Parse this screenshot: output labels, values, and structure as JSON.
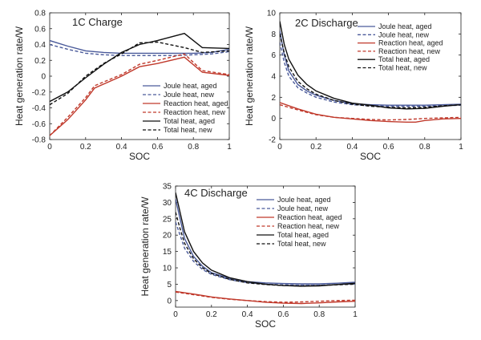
{
  "chart_data": [
    {
      "type": "line",
      "title": "1C Charge",
      "xlabel": "SOC",
      "ylabel": "Heat generation rate/W",
      "xlim": [
        0,
        1
      ],
      "ylim": [
        -0.8,
        0.8
      ],
      "xticks": [
        "0",
        "0.2",
        "0.4",
        "0.6",
        "0.8",
        "1"
      ],
      "yticks": [
        "-0.8",
        "-0.6",
        "-0.4",
        "-0.2",
        "0",
        "0.2",
        "0.4",
        "0.6",
        "0.8"
      ],
      "legend_position": "lower-right",
      "series": [
        {
          "name": "Joule heat, aged",
          "color": "#4a5a9a",
          "dash": "solid",
          "x": [
            0,
            0.1,
            0.2,
            0.3,
            0.4,
            0.5,
            0.6,
            0.7,
            0.8,
            0.9,
            1.0
          ],
          "y": [
            0.45,
            0.38,
            0.32,
            0.3,
            0.29,
            0.29,
            0.29,
            0.29,
            0.29,
            0.3,
            0.34
          ]
        },
        {
          "name": "Joule heat, new",
          "color": "#4a5a9a",
          "dash": "dashed",
          "x": [
            0,
            0.1,
            0.2,
            0.3,
            0.4,
            0.5,
            0.6,
            0.7,
            0.8,
            0.9,
            1.0
          ],
          "y": [
            0.4,
            0.34,
            0.29,
            0.27,
            0.26,
            0.26,
            0.26,
            0.26,
            0.27,
            0.28,
            0.31
          ]
        },
        {
          "name": "Reaction heat, aged",
          "color": "#c0392b",
          "dash": "solid",
          "x": [
            0,
            0.1,
            0.2,
            0.25,
            0.4,
            0.5,
            0.6,
            0.75,
            0.85,
            1.0
          ],
          "y": [
            -0.75,
            -0.55,
            -0.3,
            -0.15,
            0.0,
            0.12,
            0.16,
            0.24,
            0.05,
            0.01
          ]
        },
        {
          "name": "Reaction heat, new",
          "color": "#c0392b",
          "dash": "dashed",
          "x": [
            0,
            0.1,
            0.2,
            0.25,
            0.4,
            0.5,
            0.6,
            0.75,
            0.85,
            1.0
          ],
          "y": [
            -0.75,
            -0.52,
            -0.27,
            -0.12,
            0.02,
            0.15,
            0.2,
            0.28,
            0.07,
            0.02
          ]
        },
        {
          "name": "Total heat, aged",
          "color": "#111111",
          "dash": "solid",
          "x": [
            0,
            0.1,
            0.2,
            0.3,
            0.4,
            0.5,
            0.6,
            0.75,
            0.85,
            1.0
          ],
          "y": [
            -0.32,
            -0.2,
            -0.02,
            0.15,
            0.3,
            0.4,
            0.45,
            0.54,
            0.36,
            0.35
          ]
        },
        {
          "name": "Total heat, new",
          "color": "#111111",
          "dash": "dashed",
          "x": [
            0,
            0.1,
            0.2,
            0.3,
            0.4,
            0.5,
            0.6,
            0.75,
            0.85,
            1.0
          ],
          "y": [
            -0.36,
            -0.22,
            0.0,
            0.16,
            0.28,
            0.42,
            0.43,
            0.36,
            0.3,
            0.32
          ]
        }
      ]
    },
    {
      "type": "line",
      "title": "2C Discharge",
      "xlabel": "SOC",
      "ylabel": "Heat generation rate/W",
      "xlim": [
        0,
        1
      ],
      "ylim": [
        -2,
        10
      ],
      "xticks": [
        "0",
        "0.2",
        "0.4",
        "0.6",
        "0.8",
        "1"
      ],
      "yticks": [
        "-2",
        "0",
        "2",
        "4",
        "6",
        "8",
        "10"
      ],
      "legend_position": "top-right",
      "series": [
        {
          "name": "Joule heat, aged",
          "color": "#4a5a9a",
          "dash": "solid",
          "x": [
            0,
            0.025,
            0.05,
            0.1,
            0.15,
            0.2,
            0.3,
            0.4,
            0.5,
            0.6,
            0.7,
            0.8,
            0.9,
            1.0
          ],
          "y": [
            8.3,
            6.0,
            4.5,
            3.2,
            2.6,
            2.2,
            1.7,
            1.4,
            1.3,
            1.25,
            1.25,
            1.25,
            1.3,
            1.35
          ]
        },
        {
          "name": "Joule heat, new",
          "color": "#4a5a9a",
          "dash": "dashed",
          "x": [
            0,
            0.025,
            0.05,
            0.1,
            0.15,
            0.2,
            0.3,
            0.4,
            0.5,
            0.6,
            0.7,
            0.8,
            0.9,
            1.0
          ],
          "y": [
            7.2,
            5.3,
            4.0,
            2.9,
            2.4,
            2.0,
            1.55,
            1.3,
            1.2,
            1.15,
            1.15,
            1.15,
            1.2,
            1.25
          ]
        },
        {
          "name": "Reaction heat, aged",
          "color": "#c0392b",
          "dash": "solid",
          "x": [
            0,
            0.1,
            0.2,
            0.3,
            0.4,
            0.5,
            0.6,
            0.7,
            0.75,
            0.8,
            0.9,
            1.0
          ],
          "y": [
            1.5,
            0.9,
            0.4,
            0.1,
            -0.05,
            -0.2,
            -0.3,
            -0.35,
            -0.35,
            -0.2,
            -0.05,
            0.0
          ]
        },
        {
          "name": "Reaction heat, new",
          "color": "#c0392b",
          "dash": "dashed",
          "x": [
            0,
            0.1,
            0.2,
            0.3,
            0.4,
            0.5,
            0.6,
            0.7,
            0.8,
            0.9,
            1.0
          ],
          "y": [
            1.3,
            0.8,
            0.35,
            0.1,
            0.0,
            -0.1,
            -0.15,
            -0.1,
            0.0,
            0.05,
            0.1
          ]
        },
        {
          "name": "Total heat, aged",
          "color": "#111111",
          "dash": "solid",
          "x": [
            0,
            0.025,
            0.05,
            0.1,
            0.15,
            0.2,
            0.3,
            0.4,
            0.5,
            0.6,
            0.7,
            0.8,
            0.9,
            1.0
          ],
          "y": [
            9.2,
            7.0,
            5.6,
            4.1,
            3.2,
            2.6,
            1.9,
            1.45,
            1.25,
            1.0,
            0.9,
            0.95,
            1.15,
            1.3
          ]
        },
        {
          "name": "Total heat, new",
          "color": "#111111",
          "dash": "dashed",
          "x": [
            0,
            0.025,
            0.05,
            0.1,
            0.15,
            0.2,
            0.3,
            0.4,
            0.5,
            0.6,
            0.7,
            0.8,
            0.9,
            1.0
          ],
          "y": [
            8.0,
            6.2,
            4.9,
            3.5,
            2.8,
            2.3,
            1.7,
            1.35,
            1.15,
            1.05,
            1.0,
            1.05,
            1.2,
            1.3
          ]
        }
      ]
    },
    {
      "type": "line",
      "title": "4C Discharge",
      "xlabel": "SOC",
      "ylabel": "Heat generation rate/W",
      "xlim": [
        0,
        1
      ],
      "ylim": [
        -2,
        35
      ],
      "xticks": [
        "0",
        "0.2",
        "0.4",
        "0.6",
        "0.8",
        "1"
      ],
      "yticks": [
        "0",
        "5",
        "10",
        "15",
        "20",
        "25",
        "30",
        "35"
      ],
      "legend_position": "top-right",
      "series": [
        {
          "name": "Joule heat, aged",
          "color": "#4a5a9a",
          "dash": "solid",
          "x": [
            0,
            0.025,
            0.05,
            0.1,
            0.15,
            0.2,
            0.3,
            0.4,
            0.5,
            0.6,
            0.7,
            0.8,
            0.9,
            1.0
          ],
          "y": [
            31.0,
            25.0,
            19.0,
            13.5,
            10.5,
            8.5,
            6.8,
            5.8,
            5.4,
            5.2,
            5.1,
            5.1,
            5.3,
            5.6
          ]
        },
        {
          "name": "Joule heat, new",
          "color": "#4a5a9a",
          "dash": "dashed",
          "x": [
            0,
            0.025,
            0.05,
            0.1,
            0.15,
            0.2,
            0.3,
            0.4,
            0.5,
            0.6,
            0.7,
            0.8,
            0.9,
            1.0
          ],
          "y": [
            24.0,
            20.0,
            16.0,
            12.0,
            9.5,
            8.0,
            6.4,
            5.5,
            5.0,
            4.8,
            4.7,
            4.7,
            4.9,
            5.1
          ]
        },
        {
          "name": "Reaction heat, aged",
          "color": "#c0392b",
          "dash": "solid",
          "x": [
            0,
            0.1,
            0.2,
            0.3,
            0.4,
            0.5,
            0.6,
            0.7,
            0.8,
            0.9,
            1.0
          ],
          "y": [
            2.8,
            2.0,
            1.1,
            0.5,
            0.0,
            -0.5,
            -0.8,
            -0.9,
            -0.7,
            -0.4,
            -0.2
          ]
        },
        {
          "name": "Reaction heat, new",
          "color": "#c0392b",
          "dash": "dashed",
          "x": [
            0,
            0.1,
            0.2,
            0.3,
            0.4,
            0.5,
            0.6,
            0.7,
            0.8,
            0.9,
            1.0
          ],
          "y": [
            2.6,
            1.8,
            1.0,
            0.4,
            0.0,
            -0.3,
            -0.5,
            -0.4,
            -0.2,
            0.0,
            0.1
          ]
        },
        {
          "name": "Total heat, aged",
          "color": "#111111",
          "dash": "solid",
          "x": [
            0,
            0.025,
            0.05,
            0.1,
            0.15,
            0.2,
            0.3,
            0.4,
            0.5,
            0.6,
            0.7,
            0.8,
            0.9,
            1.0
          ],
          "y": [
            33.0,
            27.0,
            21.0,
            15.0,
            11.5,
            9.3,
            7.0,
            5.8,
            5.0,
            4.6,
            4.4,
            4.5,
            4.9,
            5.3
          ]
        },
        {
          "name": "Total heat, new",
          "color": "#111111",
          "dash": "dashed",
          "x": [
            0,
            0.025,
            0.05,
            0.1,
            0.15,
            0.2,
            0.3,
            0.4,
            0.5,
            0.6,
            0.7,
            0.8,
            0.9,
            1.0
          ],
          "y": [
            27.0,
            22.0,
            17.5,
            12.8,
            10.0,
            8.3,
            6.5,
            5.4,
            4.9,
            4.6,
            4.5,
            4.6,
            4.8,
            5.0
          ]
        }
      ]
    }
  ]
}
